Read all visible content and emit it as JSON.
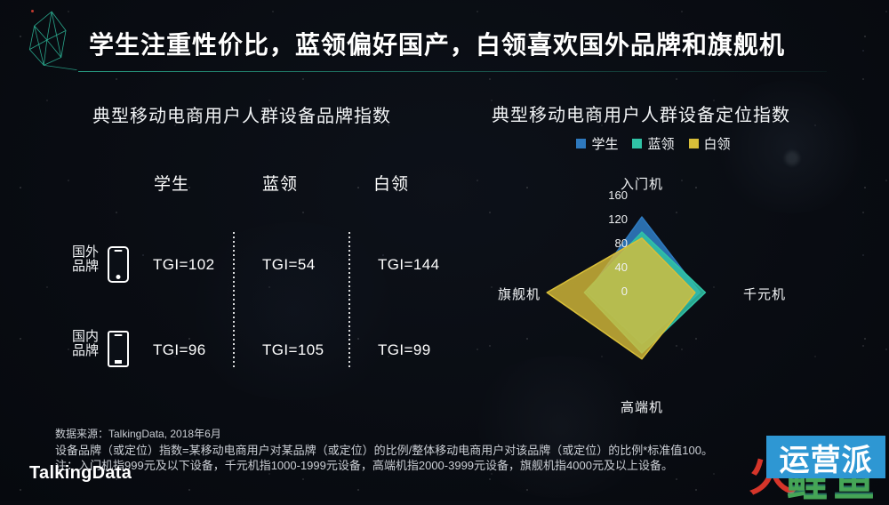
{
  "slide": {
    "title": "学生注重性价比，蓝领偏好国产，白领喜欢国外品牌和旗舰机",
    "logo_text": "TalkingData"
  },
  "chart_data": [
    {
      "type": "table",
      "title": "典型移动电商用户人群设备品牌指数",
      "columns": [
        "学生",
        "蓝领",
        "白领"
      ],
      "rows": [
        {
          "label": "国外品牌",
          "label_lines": [
            "国外",
            "品牌"
          ],
          "icon": "foreign-brand-phone-icon",
          "cells": [
            "TGI=102",
            "TGI=54",
            "TGI=144"
          ]
        },
        {
          "label": "国内品牌",
          "label_lines": [
            "国内",
            "品牌"
          ],
          "icon": "domestic-brand-phone-icon",
          "cells": [
            "TGI=96",
            "TGI=105",
            "TGI=99"
          ]
        }
      ]
    },
    {
      "type": "radar",
      "title": "典型移动电商用户人群设备定位指数",
      "categories": [
        "入门机",
        "千元机",
        "高端机",
        "旗舰机"
      ],
      "series": [
        {
          "name": "学生",
          "color": "#2E79BE",
          "values": [
            125,
            96,
            85,
            90
          ]
        },
        {
          "name": "蓝领",
          "color": "#30C3A6",
          "values": [
            100,
            105,
            100,
            95
          ]
        },
        {
          "name": "白领",
          "color": "#D8BE39",
          "values": [
            90,
            88,
            110,
            157
          ]
        }
      ],
      "axis_max": 160,
      "axis_min": 0,
      "ticks_top_to_center": [
        "160",
        "120",
        "80",
        "40",
        "0"
      ],
      "legend_position": "top",
      "grid": false
    }
  ],
  "footer": {
    "line1": "数据来源：TalkingData, 2018年6月",
    "line2": "设备品牌（或定位）指数=某移动电商用户对某品牌（或定位）的比例/整体移动电商用户对该品牌（或定位）的比例*标准值100。",
    "line3": "注：入门机指999元及以下设备，千元机指1000-1999元设备，高端机指2000-3999元设备，旗舰机指4000元及以上设备。"
  },
  "watermark": {
    "box_text": "运营派",
    "box_color": "#2E97D3",
    "fire_char": "火",
    "fish_chars": "鲤鱼"
  }
}
